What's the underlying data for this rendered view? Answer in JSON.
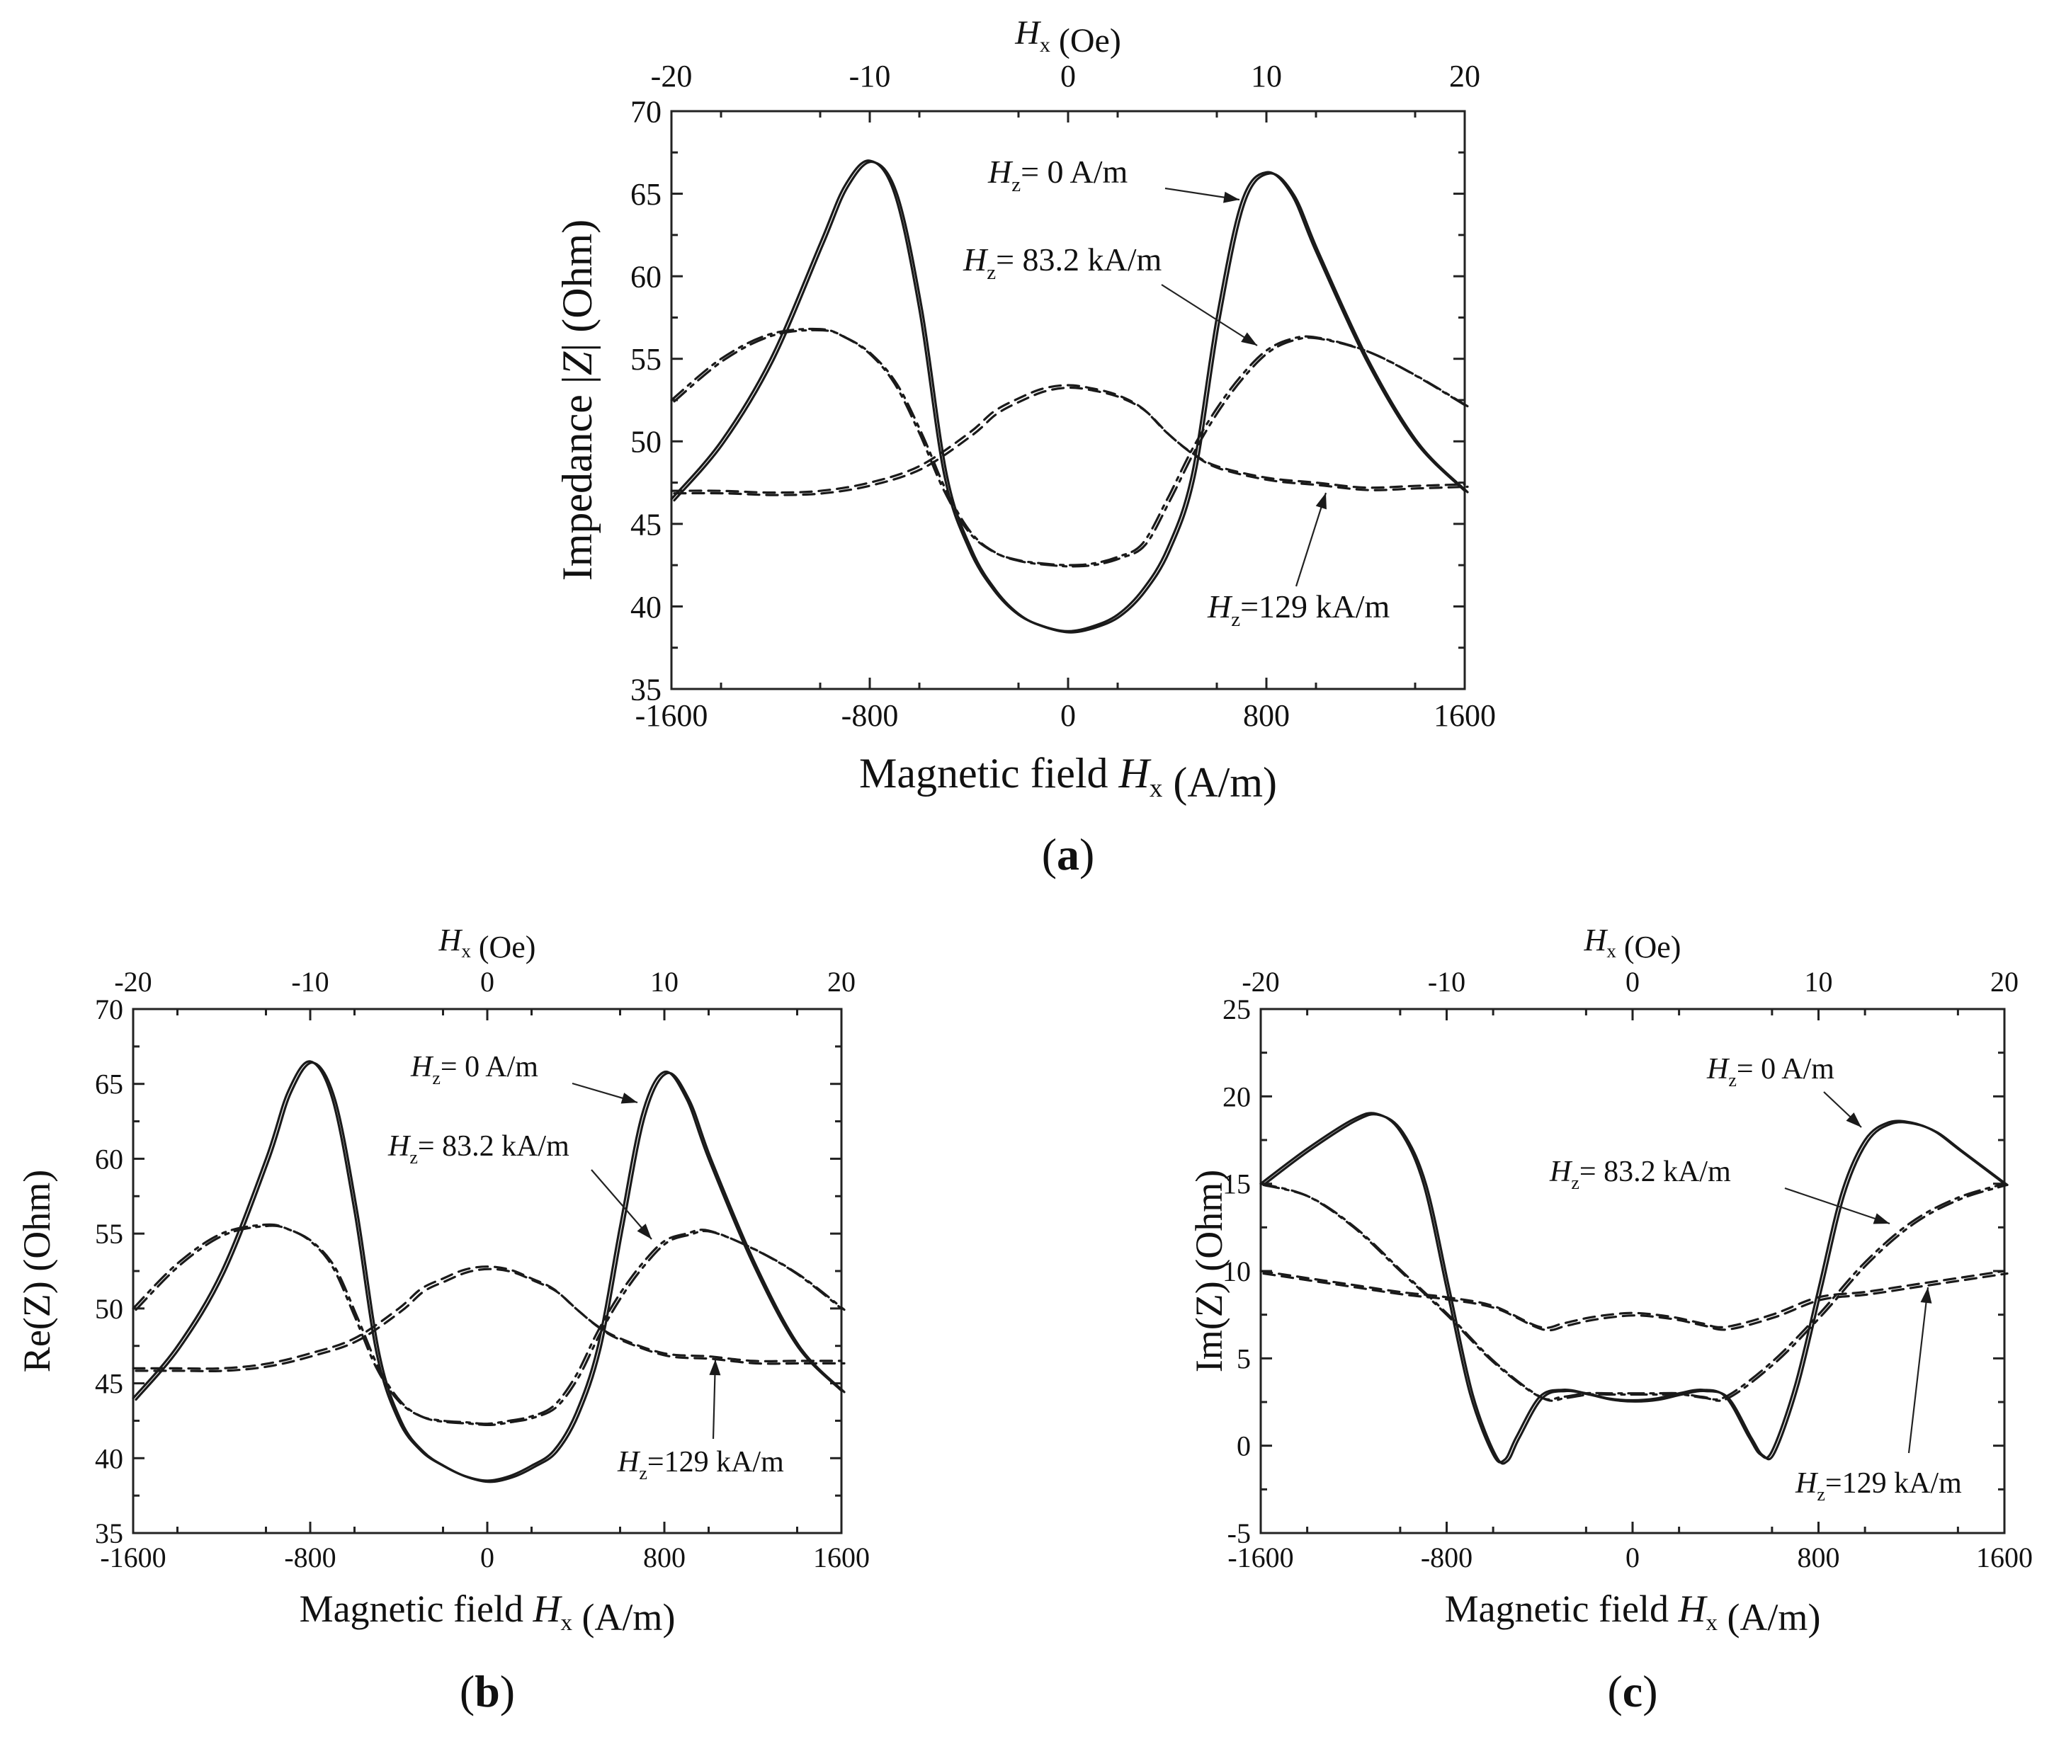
{
  "figure": {
    "panel_labels": [
      "(a)",
      "(b)",
      "(c)"
    ]
  },
  "chart_data": [
    {
      "id": "a",
      "type": "line",
      "panel_label": "(a)",
      "title": "",
      "xlabel": "Magnetic field H_x (A/m)",
      "ylabel": "Impedance |Z| (Ohm)",
      "top_axis_label": "H_x (Oe)",
      "xlim": [
        -1600,
        1600
      ],
      "ylim": [
        35,
        70
      ],
      "x_ticks": [
        "-1600",
        "-800",
        "0",
        "800",
        "1600"
      ],
      "y_ticks": [
        "35",
        "40",
        "45",
        "50",
        "55",
        "60",
        "65",
        "70"
      ],
      "top_ticks": [
        "-20",
        "-10",
        "0",
        "10",
        "20"
      ],
      "series": [
        {
          "name": "H_z = 0 A/m",
          "style": "solid",
          "x": [
            -1600,
            -1400,
            -1200,
            -1000,
            -900,
            -800,
            -700,
            -600,
            -500,
            -400,
            -300,
            -200,
            -100,
            0,
            100,
            200,
            300,
            400,
            500,
            600,
            700,
            800,
            900,
            1000,
            1200,
            1400,
            1600
          ],
          "y": [
            46.5,
            50.0,
            55.0,
            62.0,
            65.5,
            67.0,
            65.0,
            58.0,
            48.0,
            43.5,
            41.0,
            39.5,
            38.8,
            38.5,
            38.8,
            39.5,
            41.0,
            43.5,
            48.0,
            57.5,
            64.5,
            66.3,
            65.0,
            61.5,
            55.0,
            50.0,
            47.0
          ]
        },
        {
          "name": "H_z = 83.2 kA/m",
          "style": "dashdot",
          "x": [
            -1600,
            -1400,
            -1200,
            -1000,
            -900,
            -800,
            -700,
            -600,
            -500,
            -400,
            -300,
            -200,
            -100,
            0,
            100,
            200,
            300,
            400,
            500,
            600,
            700,
            800,
            900,
            1000,
            1200,
            1400,
            1600
          ],
          "y": [
            52.5,
            55.0,
            56.5,
            56.8,
            56.3,
            55.3,
            53.5,
            50.5,
            47.0,
            44.5,
            43.3,
            42.8,
            42.6,
            42.5,
            42.6,
            43.0,
            43.8,
            46.5,
            49.5,
            52.0,
            54.0,
            55.5,
            56.2,
            56.3,
            55.5,
            54.0,
            52.2
          ]
        },
        {
          "name": "H_z = 129 kA/m",
          "style": "dashed",
          "x": [
            -1600,
            -1400,
            -1200,
            -1000,
            -800,
            -600,
            -400,
            -300,
            -200,
            -100,
            0,
            100,
            200,
            300,
            400,
            500,
            600,
            800,
            1000,
            1200,
            1400,
            1600
          ],
          "y": [
            47.0,
            47.0,
            46.9,
            47.0,
            47.5,
            48.5,
            50.5,
            51.8,
            52.6,
            53.2,
            53.4,
            53.2,
            52.8,
            52.0,
            50.5,
            49.3,
            48.5,
            47.8,
            47.5,
            47.2,
            47.3,
            47.4
          ]
        }
      ],
      "annotations": [
        {
          "pre": "H",
          "sub": "z",
          "post": "= 0 A/m"
        },
        {
          "pre": "H",
          "sub": "z",
          "post": "= 83.2 kA/m"
        },
        {
          "pre": "H",
          "sub": "z",
          "post": "=129 kA/m"
        }
      ]
    },
    {
      "id": "b",
      "type": "line",
      "panel_label": "(b)",
      "title": "",
      "xlabel": "Magnetic field H_x (A/m)",
      "ylabel": "Re(Z) (Ohm)",
      "top_axis_label": "H_x (Oe)",
      "xlim": [
        -1600,
        1600
      ],
      "ylim": [
        35,
        70
      ],
      "x_ticks": [
        "-1600",
        "-800",
        "0",
        "800",
        "1600"
      ],
      "y_ticks": [
        "35",
        "40",
        "45",
        "50",
        "55",
        "60",
        "65",
        "70"
      ],
      "top_ticks": [
        "-20",
        "-10",
        "0",
        "10",
        "20"
      ],
      "series": [
        {
          "name": "H_z = 0 A/m",
          "style": "solid",
          "x": [
            -1600,
            -1400,
            -1200,
            -1000,
            -900,
            -800,
            -700,
            -600,
            -500,
            -400,
            -300,
            -200,
            -100,
            0,
            100,
            200,
            300,
            400,
            500,
            600,
            700,
            800,
            900,
            1000,
            1200,
            1400,
            1600
          ],
          "y": [
            44.0,
            47.5,
            52.5,
            60.0,
            64.5,
            66.5,
            64.0,
            56.5,
            47.0,
            42.5,
            40.5,
            39.5,
            38.8,
            38.5,
            38.8,
            39.5,
            40.5,
            43.0,
            47.5,
            55.5,
            63.0,
            65.8,
            64.0,
            60.0,
            53.0,
            47.5,
            44.5
          ]
        },
        {
          "name": "H_z = 83.2 kA/m",
          "style": "dashdot",
          "x": [
            -1600,
            -1400,
            -1200,
            -1000,
            -900,
            -800,
            -700,
            -600,
            -500,
            -400,
            -300,
            -200,
            -100,
            0,
            100,
            200,
            300,
            400,
            500,
            600,
            700,
            800,
            900,
            1000,
            1200,
            1400,
            1600
          ],
          "y": [
            50.0,
            53.0,
            55.0,
            55.6,
            55.3,
            54.5,
            52.8,
            49.5,
            46.0,
            43.8,
            42.8,
            42.5,
            42.4,
            42.3,
            42.5,
            42.8,
            43.5,
            45.5,
            48.5,
            51.0,
            53.0,
            54.5,
            55.0,
            55.2,
            54.0,
            52.3,
            50.0
          ]
        },
        {
          "name": "H_z = 129 kA/m",
          "style": "dashed",
          "x": [
            -1600,
            -1400,
            -1200,
            -1000,
            -800,
            -600,
            -400,
            -300,
            -200,
            -100,
            0,
            100,
            200,
            300,
            400,
            500,
            600,
            800,
            1000,
            1200,
            1400,
            1600
          ],
          "y": [
            46.0,
            46.0,
            46.0,
            46.3,
            47.0,
            48.0,
            50.0,
            51.3,
            52.0,
            52.6,
            52.8,
            52.6,
            52.0,
            51.3,
            50.0,
            48.8,
            48.0,
            47.0,
            46.8,
            46.5,
            46.5,
            46.5
          ]
        }
      ],
      "annotations": [
        {
          "pre": "H",
          "sub": "z",
          "post": "= 0 A/m"
        },
        {
          "pre": "H",
          "sub": "z",
          "post": "= 83.2 kA/m"
        },
        {
          "pre": "H",
          "sub": "z",
          "post": "=129 kA/m"
        }
      ]
    },
    {
      "id": "c",
      "type": "line",
      "panel_label": "(c)",
      "title": "",
      "xlabel": "Magnetic field H_x (A/m)",
      "ylabel": "Im(Z) (Ohm)",
      "top_axis_label": "H_x (Oe)",
      "xlim": [
        -1600,
        1600
      ],
      "ylim": [
        -5,
        25
      ],
      "x_ticks": [
        "-1600",
        "-800",
        "0",
        "800",
        "1600"
      ],
      "y_ticks": [
        "-5",
        "0",
        "5",
        "10",
        "15",
        "20",
        "25"
      ],
      "top_ticks": [
        "-20",
        "-10",
        "0",
        "10",
        "20"
      ],
      "series": [
        {
          "name": "H_z = 0 A/m",
          "style": "solid",
          "x": [
            -1600,
            -1400,
            -1200,
            -1100,
            -1000,
            -900,
            -800,
            -700,
            -600,
            -550,
            -500,
            -400,
            -300,
            -200,
            -100,
            0,
            100,
            200,
            300,
            400,
            500,
            550,
            600,
            700,
            800,
            900,
            1000,
            1100,
            1200,
            1300,
            1400,
            1600
          ],
          "y": [
            15.0,
            17.0,
            18.7,
            19.0,
            18.0,
            15.0,
            9.0,
            3.0,
            -0.5,
            -0.8,
            0.5,
            2.8,
            3.2,
            3.0,
            2.7,
            2.6,
            2.7,
            3.0,
            3.2,
            2.8,
            0.5,
            -0.5,
            -0.3,
            3.5,
            9.0,
            14.5,
            17.5,
            18.5,
            18.5,
            18.0,
            17.0,
            15.0
          ]
        },
        {
          "name": "H_z = 83.2 kA/m",
          "style": "dashdot",
          "x": [
            -1600,
            -1400,
            -1200,
            -1000,
            -800,
            -600,
            -400,
            -300,
            -200,
            -100,
            0,
            100,
            200,
            300,
            400,
            600,
            800,
            1000,
            1200,
            1400,
            1600
          ],
          "y": [
            15.0,
            14.3,
            12.5,
            10.0,
            7.5,
            4.8,
            2.8,
            2.8,
            3.0,
            3.0,
            3.0,
            3.0,
            3.0,
            2.8,
            2.8,
            4.8,
            7.5,
            10.5,
            12.8,
            14.2,
            15.0
          ]
        },
        {
          "name": "H_z = 129 kA/m",
          "style": "dashed",
          "x": [
            -1600,
            -1400,
            -1200,
            -1000,
            -800,
            -600,
            -400,
            -300,
            -200,
            -100,
            0,
            100,
            200,
            300,
            400,
            600,
            800,
            1000,
            1200,
            1400,
            1600
          ],
          "y": [
            10.0,
            9.6,
            9.2,
            8.8,
            8.5,
            8.0,
            6.8,
            7.0,
            7.3,
            7.5,
            7.6,
            7.5,
            7.3,
            7.0,
            6.8,
            7.5,
            8.5,
            8.8,
            9.2,
            9.6,
            10.0
          ]
        }
      ],
      "annotations": [
        {
          "pre": "H",
          "sub": "z",
          "post": "= 0 A/m"
        },
        {
          "pre": "H",
          "sub": "z",
          "post": "= 83.2 kA/m"
        },
        {
          "pre": "H",
          "sub": "z",
          "post": "=129 kA/m"
        }
      ]
    }
  ]
}
